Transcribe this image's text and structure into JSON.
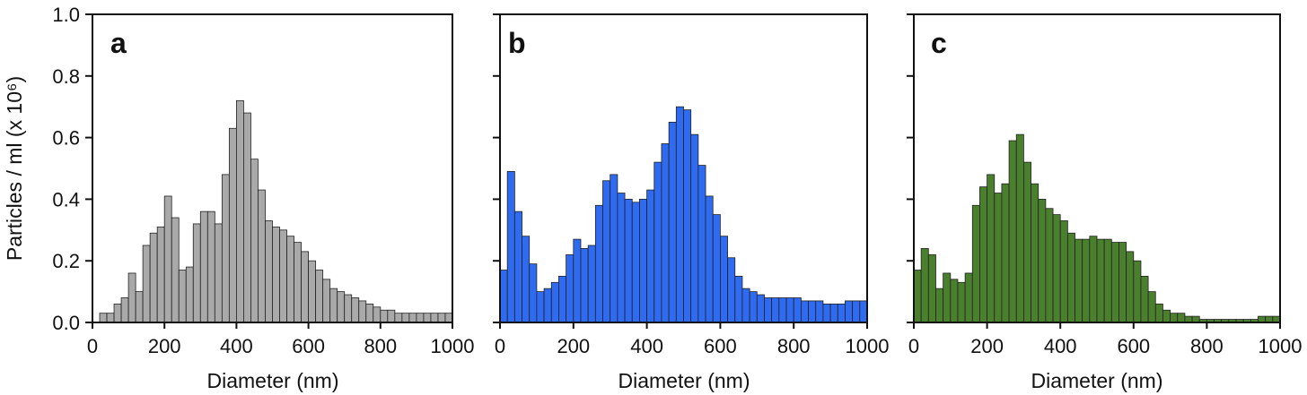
{
  "figure": {
    "ylabel": "Particles / ml (x 10⁶)",
    "xlabel": "Diameter (nm)",
    "yticks": [
      "0.0",
      "0.2",
      "0.4",
      "0.6",
      "0.8",
      "1.0"
    ],
    "xticks": [
      "0",
      "200",
      "400",
      "600",
      "800",
      "1000"
    ]
  },
  "chart_data": [
    {
      "type": "bar",
      "label": "a",
      "color": "#a9a9a9",
      "xlabel": "Diameter (nm)",
      "ylabel": "Particles / ml (x 10⁶)",
      "xlim": [
        0,
        1000
      ],
      "ylim": [
        0,
        1.0
      ],
      "bin_width_nm": 20,
      "bin_centers": [
        30,
        50,
        70,
        90,
        110,
        130,
        150,
        170,
        190,
        210,
        230,
        250,
        270,
        290,
        310,
        330,
        350,
        370,
        390,
        410,
        430,
        450,
        470,
        490,
        510,
        530,
        550,
        570,
        590,
        610,
        630,
        650,
        670,
        690,
        710,
        730,
        750,
        770,
        790,
        810,
        830,
        850,
        870,
        890,
        910,
        930,
        950,
        970,
        990
      ],
      "values": [
        0.03,
        0.03,
        0.06,
        0.08,
        0.16,
        0.1,
        0.25,
        0.29,
        0.31,
        0.41,
        0.34,
        0.17,
        0.18,
        0.32,
        0.36,
        0.36,
        0.32,
        0.48,
        0.63,
        0.72,
        0.68,
        0.53,
        0.43,
        0.33,
        0.31,
        0.3,
        0.28,
        0.26,
        0.23,
        0.2,
        0.17,
        0.14,
        0.11,
        0.1,
        0.09,
        0.08,
        0.07,
        0.06,
        0.05,
        0.04,
        0.04,
        0.03,
        0.03,
        0.03,
        0.03,
        0.03,
        0.03,
        0.03,
        0.03
      ]
    },
    {
      "type": "bar",
      "label": "b",
      "color": "#2f6bf0",
      "xlabel": "Diameter (nm)",
      "xlim": [
        0,
        1000
      ],
      "ylim": [
        0,
        1.0
      ],
      "bin_width_nm": 20,
      "bin_centers": [
        10,
        30,
        50,
        70,
        90,
        110,
        130,
        150,
        170,
        190,
        210,
        230,
        250,
        270,
        290,
        310,
        330,
        350,
        370,
        390,
        410,
        430,
        450,
        470,
        490,
        510,
        530,
        550,
        570,
        590,
        610,
        630,
        650,
        670,
        690,
        710,
        730,
        750,
        770,
        790,
        810,
        830,
        850,
        870,
        890,
        910,
        930,
        950,
        970,
        990
      ],
      "values": [
        0.17,
        0.49,
        0.36,
        0.28,
        0.19,
        0.1,
        0.11,
        0.13,
        0.15,
        0.22,
        0.27,
        0.24,
        0.25,
        0.38,
        0.46,
        0.48,
        0.42,
        0.4,
        0.39,
        0.4,
        0.43,
        0.52,
        0.58,
        0.65,
        0.7,
        0.69,
        0.61,
        0.51,
        0.41,
        0.35,
        0.28,
        0.21,
        0.15,
        0.11,
        0.1,
        0.09,
        0.08,
        0.08,
        0.08,
        0.08,
        0.08,
        0.07,
        0.07,
        0.07,
        0.06,
        0.06,
        0.06,
        0.07,
        0.07,
        0.07
      ]
    },
    {
      "type": "bar",
      "label": "c",
      "color": "#4a7f2e",
      "xlabel": "Diameter (nm)",
      "xlim": [
        0,
        1000
      ],
      "ylim": [
        0,
        1.0
      ],
      "bin_width_nm": 20,
      "bin_centers": [
        10,
        30,
        50,
        70,
        90,
        110,
        130,
        150,
        170,
        190,
        210,
        230,
        250,
        270,
        290,
        310,
        330,
        350,
        370,
        390,
        410,
        430,
        450,
        470,
        490,
        510,
        530,
        550,
        570,
        590,
        610,
        630,
        650,
        670,
        690,
        710,
        730,
        750,
        770,
        790,
        810,
        830,
        850,
        870,
        890,
        910,
        930,
        950,
        970,
        990
      ],
      "values": [
        0.17,
        0.24,
        0.22,
        0.11,
        0.16,
        0.14,
        0.13,
        0.16,
        0.38,
        0.44,
        0.48,
        0.42,
        0.45,
        0.59,
        0.61,
        0.52,
        0.45,
        0.4,
        0.37,
        0.35,
        0.33,
        0.29,
        0.27,
        0.27,
        0.28,
        0.27,
        0.27,
        0.26,
        0.26,
        0.23,
        0.2,
        0.15,
        0.1,
        0.06,
        0.04,
        0.03,
        0.03,
        0.02,
        0.02,
        0.01,
        0.01,
        0.01,
        0.01,
        0.01,
        0.01,
        0.01,
        0.01,
        0.02,
        0.02,
        0.02
      ]
    }
  ]
}
